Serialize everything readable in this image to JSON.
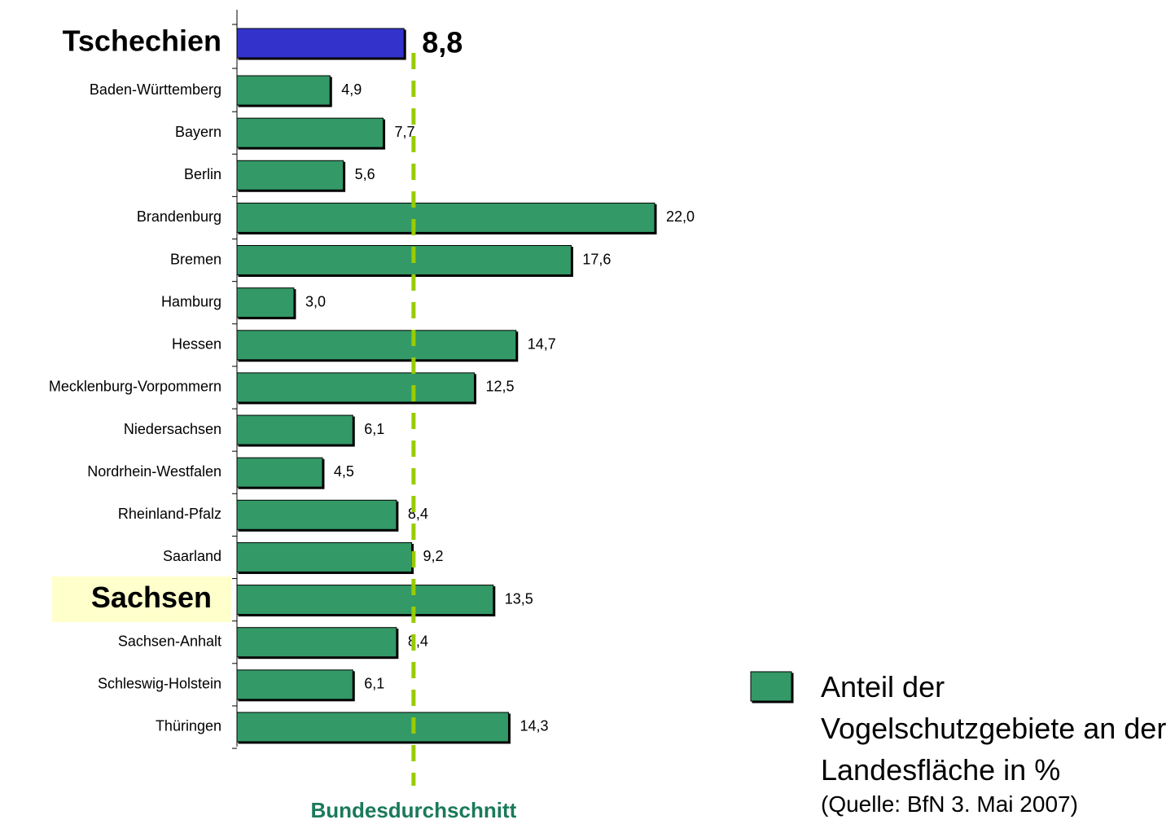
{
  "chart_data": {
    "type": "bar",
    "orientation": "horizontal",
    "categories": [
      "Tschechien",
      "Baden-Württemberg",
      "Bayern",
      "Berlin",
      "Brandenburg",
      "Bremen",
      "Hamburg",
      "Hessen",
      "Mecklenburg-Vorpommern",
      "Niedersachsen",
      "Nordrhein-Westfalen",
      "Rheinland-Pfalz",
      "Saarland",
      "Sachsen",
      "Sachsen-Anhalt",
      "Schleswig-Holstein",
      "Thüringen"
    ],
    "series": [
      {
        "name": "Anteil der Vogelschutzgebiete an der Landesfläche in %",
        "color": "#339966",
        "colors": [
          "#3333cc",
          "#339966",
          "#339966",
          "#339966",
          "#339966",
          "#339966",
          "#339966",
          "#339966",
          "#339966",
          "#339966",
          "#339966",
          "#339966",
          "#339966",
          "#339966",
          "#339966",
          "#339966",
          "#339966"
        ],
        "values": [
          8.8,
          4.9,
          7.7,
          5.6,
          22.0,
          17.6,
          3.0,
          14.7,
          12.5,
          6.1,
          4.5,
          8.4,
          9.2,
          13.5,
          8.4,
          6.1,
          14.3
        ],
        "value_labels": [
          "8,8",
          "4,9",
          "7,7",
          "5,6",
          "22,0",
          "17,6",
          "3,0",
          "14,7",
          "12,5",
          "6,1",
          "4,5",
          "8,4",
          "9,2",
          "13,5",
          "8,4",
          "6,1",
          "14,3"
        ]
      }
    ],
    "xlim": [
      0,
      22
    ],
    "reference_line": {
      "label": "Bundesdurchschnitt",
      "value": 9.3,
      "color": "#99cc00"
    },
    "source": "(Quelle: BfN 3. Mai 2007)"
  }
}
